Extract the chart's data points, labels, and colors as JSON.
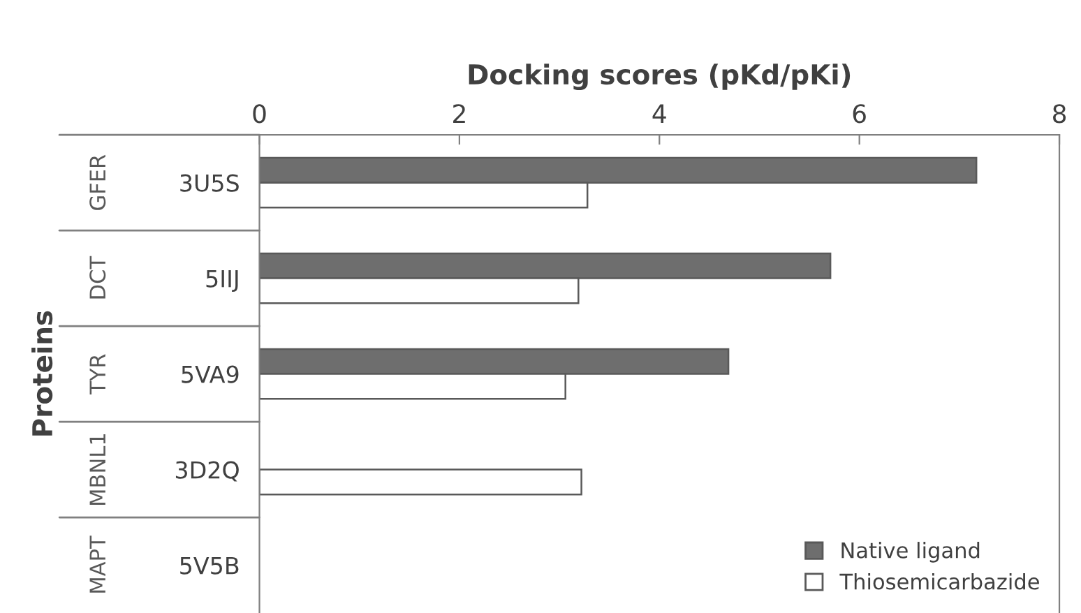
{
  "chart_data": {
    "type": "bar",
    "orientation": "horizontal",
    "xlabel": "Docking scores (pKd/pKi)",
    "ylabel": "Proteins",
    "categories": [
      "3U5S",
      "5IIJ",
      "5VA9",
      "3D2Q",
      "5V5B"
    ],
    "series": [
      {
        "name": "Native ligand",
        "color": "#6e6e6e",
        "values": [
          7.17,
          5.71,
          4.69,
          null,
          null
        ]
      },
      {
        "name": "Thiosemicarbazide",
        "color": "#ffffff",
        "values": [
          3.28,
          3.19,
          3.06,
          3.22,
          null
        ]
      }
    ],
    "annotations": [
      "GFER",
      "DCT",
      "TYR",
      "MBNL1",
      "MAPT"
    ],
    "xlim": [
      0,
      8
    ],
    "xticks": [
      0,
      2,
      4,
      6,
      8
    ],
    "grid": false,
    "legend": "bottom right"
  }
}
